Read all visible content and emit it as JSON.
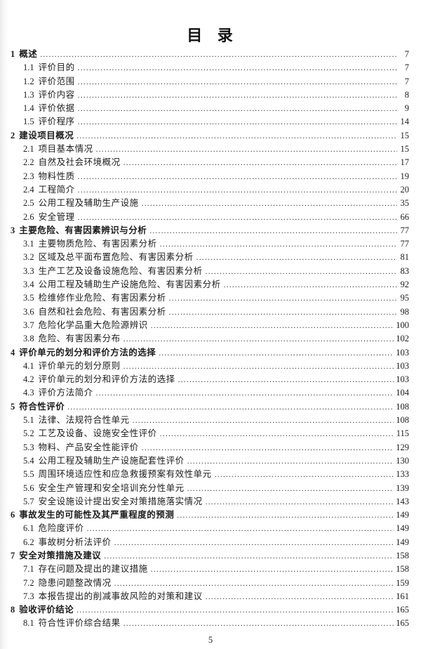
{
  "page": {
    "title": "目 录",
    "footer_page_number": "5"
  },
  "toc": {
    "entries": [
      {
        "level": 1,
        "number": "1",
        "title": "概述",
        "page": "7"
      },
      {
        "level": 2,
        "number": "1.1",
        "title": "评价目的",
        "page": "7"
      },
      {
        "level": 2,
        "number": "1.2",
        "title": "评价范围",
        "page": "7"
      },
      {
        "level": 2,
        "number": "1.3",
        "title": "评价内容",
        "page": "8"
      },
      {
        "level": 2,
        "number": "1.4",
        "title": "评价依据",
        "page": "9"
      },
      {
        "level": 2,
        "number": "1.5",
        "title": "评价程序",
        "page": "14"
      },
      {
        "level": 1,
        "number": "2",
        "title": "建设项目概况",
        "page": "15"
      },
      {
        "level": 2,
        "number": "2.1",
        "title": "项目基本情况",
        "page": "15"
      },
      {
        "level": 2,
        "number": "2.2",
        "title": "自然及社会环境概况",
        "page": "17"
      },
      {
        "level": 2,
        "number": "2.3",
        "title": "物料性质",
        "page": "19"
      },
      {
        "level": 2,
        "number": "2.4",
        "title": "工程简介",
        "page": "20"
      },
      {
        "level": 2,
        "number": "2.5",
        "title": "公用工程及辅助生产设施",
        "page": "35"
      },
      {
        "level": 2,
        "number": "2.6",
        "title": "安全管理",
        "page": "66"
      },
      {
        "level": 1,
        "number": "3",
        "title": "主要危险、有害因素辨识与分析",
        "page": "77"
      },
      {
        "level": 2,
        "number": "3.1",
        "title": "主要物质危险、有害因素分析",
        "page": "77"
      },
      {
        "level": 2,
        "number": "3.2",
        "title": "区域及总平面布置危险、有害因素分析",
        "page": "81"
      },
      {
        "level": 2,
        "number": "3.3",
        "title": "生产工艺及设备设施危险、有害因素分析",
        "page": "83"
      },
      {
        "level": 2,
        "number": "3.4",
        "title": "公用工程及辅助生产设施危险、有害因素分析",
        "page": "92"
      },
      {
        "level": 2,
        "number": "3.5",
        "title": "检维修作业危险、有害因素分析",
        "page": "95"
      },
      {
        "level": 2,
        "number": "3.6",
        "title": "自然和社会危险、有害因素分析",
        "page": "98"
      },
      {
        "level": 2,
        "number": "3.7",
        "title": "危险化学品重大危险源辨识",
        "page": "100"
      },
      {
        "level": 2,
        "number": "3.8",
        "title": "危险、有害因素分布",
        "page": "102"
      },
      {
        "level": 1,
        "number": "4",
        "title": "评价单元的划分和评价方法的选择",
        "page": "103"
      },
      {
        "level": 2,
        "number": "4.1",
        "title": "评价单元的划分原则",
        "page": "103"
      },
      {
        "level": 2,
        "number": "4.2",
        "title": "评价单元的划分和评价方法的选择",
        "page": "103"
      },
      {
        "level": 2,
        "number": "4.3",
        "title": "评价方法简介",
        "page": "104"
      },
      {
        "level": 1,
        "number": "5",
        "title": "符合性评价",
        "page": "108"
      },
      {
        "level": 2,
        "number": "5.1",
        "title": "法律、法规符合性单元",
        "page": "108"
      },
      {
        "level": 2,
        "number": "5.2",
        "title": "工艺及设备、设施安全性评价",
        "page": "115"
      },
      {
        "level": 2,
        "number": "5.3",
        "title": "物料、产品安全性能评价",
        "page": "129"
      },
      {
        "level": 2,
        "number": "5.4",
        "title": "公用工程及辅助生产设施配套性评价",
        "page": "130"
      },
      {
        "level": 2,
        "number": "5.5",
        "title": "周围环境适应性和应急救援预案有效性单元",
        "page": "133"
      },
      {
        "level": 2,
        "number": "5.6",
        "title": "安全生产管理和安全培训充分性单元",
        "page": "139"
      },
      {
        "level": 2,
        "number": "5.7",
        "title": "安全设施设计提出安全对策措施落实情况",
        "page": "143"
      },
      {
        "level": 1,
        "number": "6",
        "title": "事故发生的可能性及其严重程度的预测",
        "page": "149"
      },
      {
        "level": 2,
        "number": "6.1",
        "title": "危险度评价",
        "page": "149"
      },
      {
        "level": 2,
        "number": "6.2",
        "title": "事故树分析法评价",
        "page": "149"
      },
      {
        "level": 1,
        "number": "7",
        "title": "安全对策措施及建议",
        "page": "158"
      },
      {
        "level": 2,
        "number": "7.1",
        "title": "存在问题及提出的建议措施",
        "page": "158"
      },
      {
        "level": 2,
        "number": "7.2",
        "title": "隐患问题整改情况",
        "page": "159"
      },
      {
        "level": 2,
        "number": "7.3",
        "title": "本报告提出的削减事故风险的对策和建议",
        "page": "161"
      },
      {
        "level": 1,
        "number": "8",
        "title": "验收评价结论",
        "page": "165"
      },
      {
        "level": 2,
        "number": "8.1",
        "title": "符合性评价综合结果",
        "page": "165"
      }
    ]
  }
}
